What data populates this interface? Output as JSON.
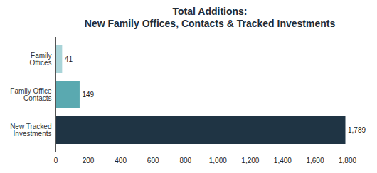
{
  "chart_data": {
    "type": "bar",
    "orientation": "horizontal",
    "title": [
      "Total Additions:",
      "New Family Offices, Contacts & Tracked Investments"
    ],
    "categories": [
      "Family Offices",
      "Family Office Contacts",
      "New Tracked Investments"
    ],
    "values": [
      41,
      149,
      1789
    ],
    "value_labels": [
      "41",
      "149",
      "1,789"
    ],
    "colors": [
      "#a9d4d8",
      "#5aa9b0",
      "#1f3444"
    ],
    "xlim": [
      0,
      1800
    ],
    "xticks": [
      0,
      200,
      400,
      600,
      800,
      {
        "value": 1000,
        "label": "1,000"
      },
      {
        "value": 1200,
        "label": "1,200"
      },
      {
        "value": 1400,
        "label": "1,400"
      },
      {
        "value": 1600,
        "label": "1,600"
      },
      {
        "value": 1800,
        "label": "1,800"
      }
    ],
    "grid": false,
    "data_labels": true
  }
}
